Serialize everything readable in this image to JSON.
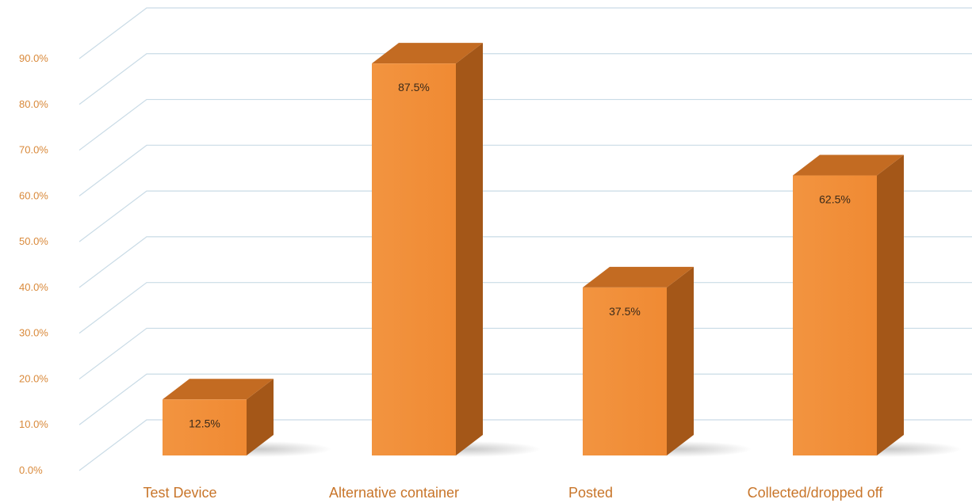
{
  "chart_data": {
    "type": "bar",
    "style": "3d-column",
    "categories": [
      "Test Device",
      "Alternative container",
      "Posted",
      "Collected/dropped off"
    ],
    "values": [
      12.5,
      87.5,
      37.5,
      62.5
    ],
    "data_labels": [
      "12.5%",
      "87.5%",
      "37.5%",
      "62.5%"
    ],
    "ylim": [
      0,
      90
    ],
    "yticks": [
      0,
      10,
      20,
      30,
      40,
      50,
      60,
      70,
      80,
      90
    ],
    "ytick_labels": [
      "0.0%",
      "10.0%",
      "20.0%",
      "30.0%",
      "40.0%",
      "50.0%",
      "60.0%",
      "70.0%",
      "80.0%",
      "90.0%"
    ],
    "grid": true,
    "legend": "none",
    "colors": {
      "bar_front": "#f08a33",
      "bar_side": "#a45718",
      "bar_top": "#c36b22",
      "gridline": "#c9dbe6",
      "tick_text": "#d9893a",
      "category_text": "#c8752a"
    }
  }
}
